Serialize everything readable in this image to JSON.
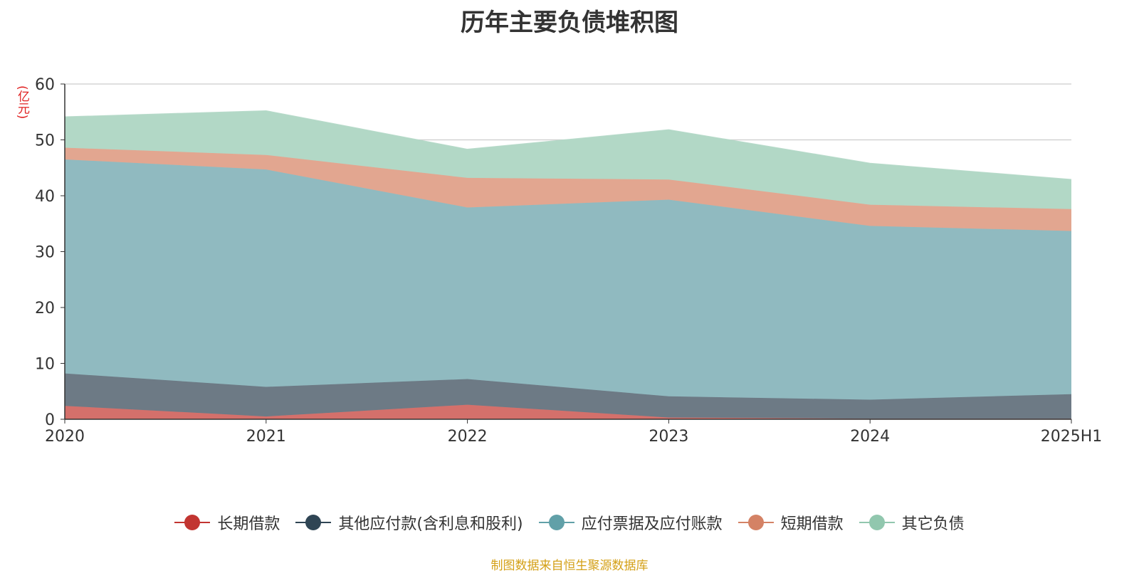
{
  "source_note": "制图数据来自恒生聚源数据库",
  "chart_data": {
    "type": "area",
    "stacked": true,
    "title": "历年主要负债堆积图",
    "y_unit": "(亿元)",
    "x": [
      "2020",
      "2021",
      "2022",
      "2023",
      "2024",
      "2025H1"
    ],
    "ylim": [
      0,
      60
    ],
    "yticks": [
      0,
      10,
      20,
      30,
      40,
      50,
      60
    ],
    "grid": true,
    "legend_position": "bottom",
    "series": [
      {
        "name": "长期借款",
        "color": "#c23531",
        "fill": "#d4706b",
        "values": [
          2.4,
          0.5,
          2.6,
          0.3,
          0.1,
          0.1
        ]
      },
      {
        "name": "其他应付款(含利息和股利)",
        "color": "#2f4554",
        "fill": "#6d7a85",
        "values": [
          5.8,
          5.3,
          4.6,
          3.8,
          3.4,
          4.4
        ]
      },
      {
        "name": "应付票据及应付账款",
        "color": "#61a0a8",
        "fill": "#90bac0",
        "values": [
          38.3,
          38.9,
          30.7,
          35.2,
          31.1,
          29.2
        ]
      },
      {
        "name": "短期借款",
        "color": "#d48265",
        "fill": "#e2a690",
        "values": [
          2.1,
          2.6,
          5.3,
          3.6,
          3.8,
          3.9
        ]
      },
      {
        "name": "其它负债",
        "color": "#91c7ae",
        "fill": "#b2d8c6",
        "values": [
          5.5,
          7.9,
          5.1,
          8.9,
          7.4,
          5.3
        ]
      }
    ]
  }
}
